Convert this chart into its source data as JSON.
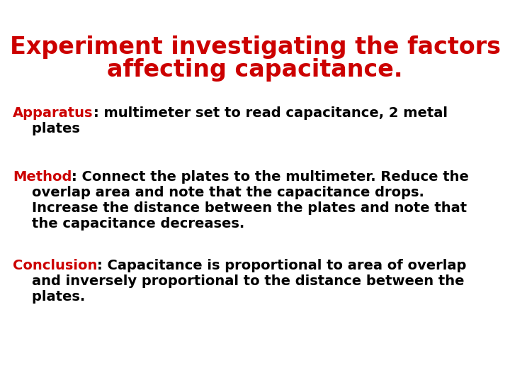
{
  "title_line1": "Experiment investigating the factors",
  "title_line2": "affecting capacitance.",
  "title_color": "#cc0000",
  "title_fontsize": 24,
  "background_color": "#ffffff",
  "body_fontsize": 14,
  "label_color": "#cc0000",
  "text_color": "#000000",
  "font_family": "DejaVu Sans",
  "sections": [
    {
      "label": "Apparatus",
      "colon_text": ": multimeter set to read capacitance, 2 metal",
      "cont_lines": [
        "    plates"
      ]
    },
    {
      "label": "Method",
      "colon_text": ": Connect the plates to the multimeter. Reduce the",
      "cont_lines": [
        "    overlap area and note that the capacitance drops.",
        "    Increase the distance between the plates and note that",
        "    the capacitance decreases."
      ]
    },
    {
      "label": "Conclusion",
      "colon_text": ": Capacitance is proportional to area of overlap",
      "cont_lines": [
        "    and inversely proportional to the distance between the",
        "    plates."
      ]
    }
  ]
}
